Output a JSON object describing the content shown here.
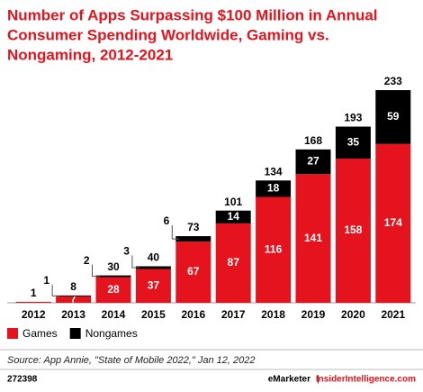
{
  "chart_data": {
    "type": "stacked_bar",
    "title": [
      "Number of Apps Surpassing $100 Million in Annual",
      "Consumer Spending Worldwide, Gaming vs.",
      "Nongaming, 2012-2021"
    ],
    "categories": [
      "2012",
      "2013",
      "2014",
      "2015",
      "2016",
      "2017",
      "2018",
      "2019",
      "2020",
      "2021"
    ],
    "series": [
      {
        "name": "Games",
        "color": "#e5131d",
        "values": [
          1,
          7,
          28,
          37,
          67,
          87,
          116,
          141,
          158,
          174
        ]
      },
      {
        "name": "Nongames",
        "color": "#000000",
        "values": [
          null,
          1,
          2,
          3,
          6,
          14,
          18,
          27,
          35,
          59
        ]
      }
    ],
    "totals": [
      1,
      8,
      30,
      40,
      73,
      101,
      134,
      168,
      193,
      233
    ],
    "source": "Source: App Annie, \"State of Mobile 2022,\" Jan 12, 2022",
    "chart_id": "272398",
    "brand": "eMarketer",
    "website": "InsiderIntelligence.com"
  }
}
